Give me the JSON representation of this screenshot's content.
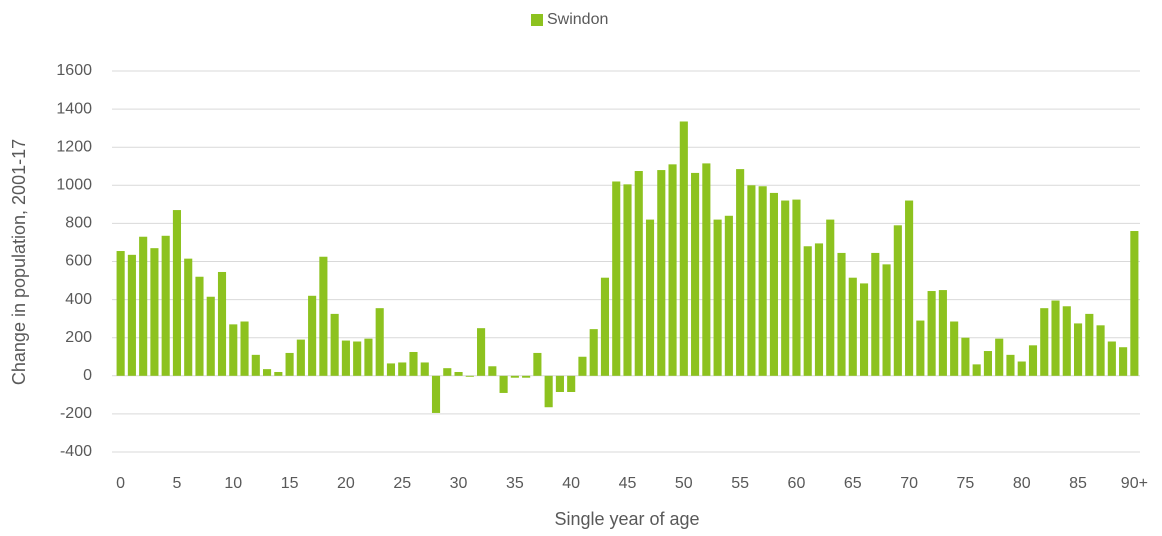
{
  "chart_data": {
    "type": "bar",
    "legend": "top",
    "series": [
      {
        "name": "Swindon",
        "color": "#8dc21f",
        "values": [
          655,
          635,
          730,
          670,
          735,
          870,
          615,
          520,
          415,
          545,
          270,
          285,
          110,
          35,
          20,
          120,
          190,
          420,
          625,
          325,
          185,
          180,
          195,
          355,
          65,
          70,
          125,
          70,
          -195,
          40,
          20,
          -5,
          250,
          50,
          -90,
          -10,
          -10,
          120,
          -165,
          -85,
          -85,
          100,
          245,
          515,
          1020,
          1005,
          1075,
          820,
          1080,
          1110,
          1335,
          1065,
          1115,
          820,
          840,
          1085,
          1000,
          995,
          960,
          920,
          925,
          680,
          695,
          820,
          645,
          515,
          485,
          645,
          585,
          790,
          920,
          290,
          445,
          450,
          285,
          200,
          60,
          130,
          195,
          110,
          75,
          160,
          355,
          395,
          365,
          275,
          325,
          265,
          180,
          150,
          760
        ]
      }
    ],
    "categories": [
      "0",
      null,
      null,
      null,
      null,
      "5",
      null,
      null,
      null,
      null,
      "10",
      null,
      null,
      null,
      null,
      "15",
      null,
      null,
      null,
      null,
      "20",
      null,
      null,
      null,
      null,
      "25",
      null,
      null,
      null,
      null,
      "30",
      null,
      null,
      null,
      null,
      "35",
      null,
      null,
      null,
      null,
      "40",
      null,
      null,
      null,
      null,
      "45",
      null,
      null,
      null,
      null,
      "50",
      null,
      null,
      null,
      null,
      "55",
      null,
      null,
      null,
      null,
      "60",
      null,
      null,
      null,
      null,
      "65",
      null,
      null,
      null,
      null,
      "70",
      null,
      null,
      null,
      null,
      "75",
      null,
      null,
      null,
      null,
      "80",
      null,
      null,
      null,
      null,
      "85",
      null,
      null,
      null,
      null,
      "90+"
    ],
    "x_label": "Single year of age",
    "y_label": "Change in population, 2001-17",
    "ylim": [
      -400,
      1600
    ],
    "yticks": [
      -400,
      -200,
      0,
      200,
      400,
      600,
      800,
      1000,
      1200,
      1400,
      1600
    ],
    "grid": true
  }
}
